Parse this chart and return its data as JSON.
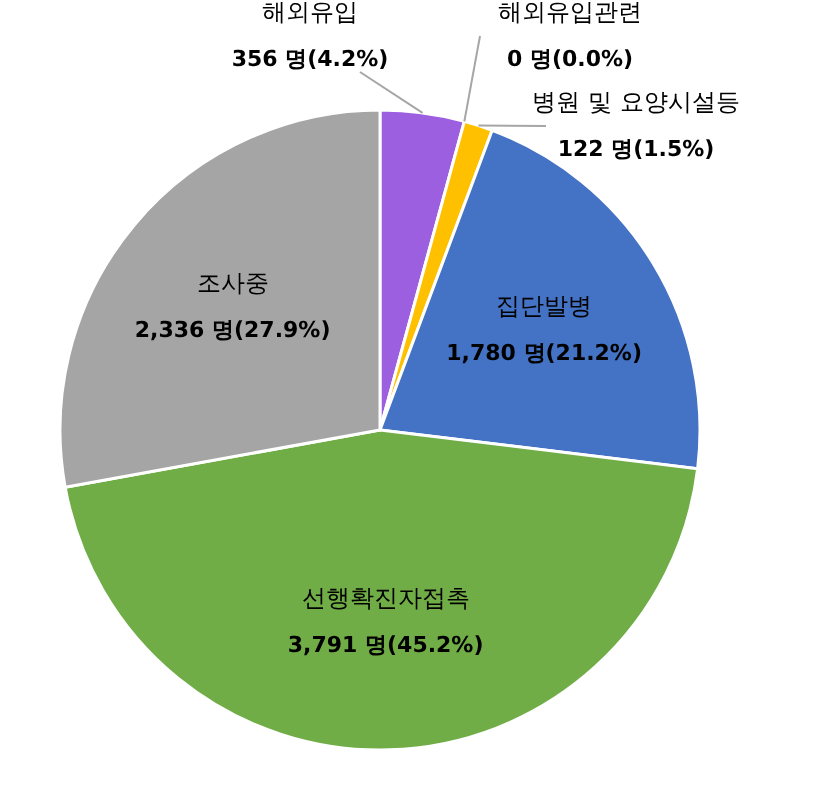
{
  "chart_data": {
    "type": "pie",
    "categories": [
      "해외유입",
      "해외유입관련",
      "병원 및 요양시설등",
      "집단발병",
      "선행확진자접촉",
      "조사중"
    ],
    "values": [
      356,
      0,
      122,
      1780,
      3791,
      2336
    ],
    "value_labels": [
      "356 명(4.2%)",
      "0 명(0.0%)",
      "122 명(1.5%)",
      "1,780 명(21.2%)",
      "3,791 명(45.2%)",
      "2,336 명(27.9%)"
    ],
    "colors": [
      "#9b5fe0",
      "#ed7d31",
      "#ffc000",
      "#4472c4",
      "#70ad47",
      "#a5a5a5"
    ]
  }
}
